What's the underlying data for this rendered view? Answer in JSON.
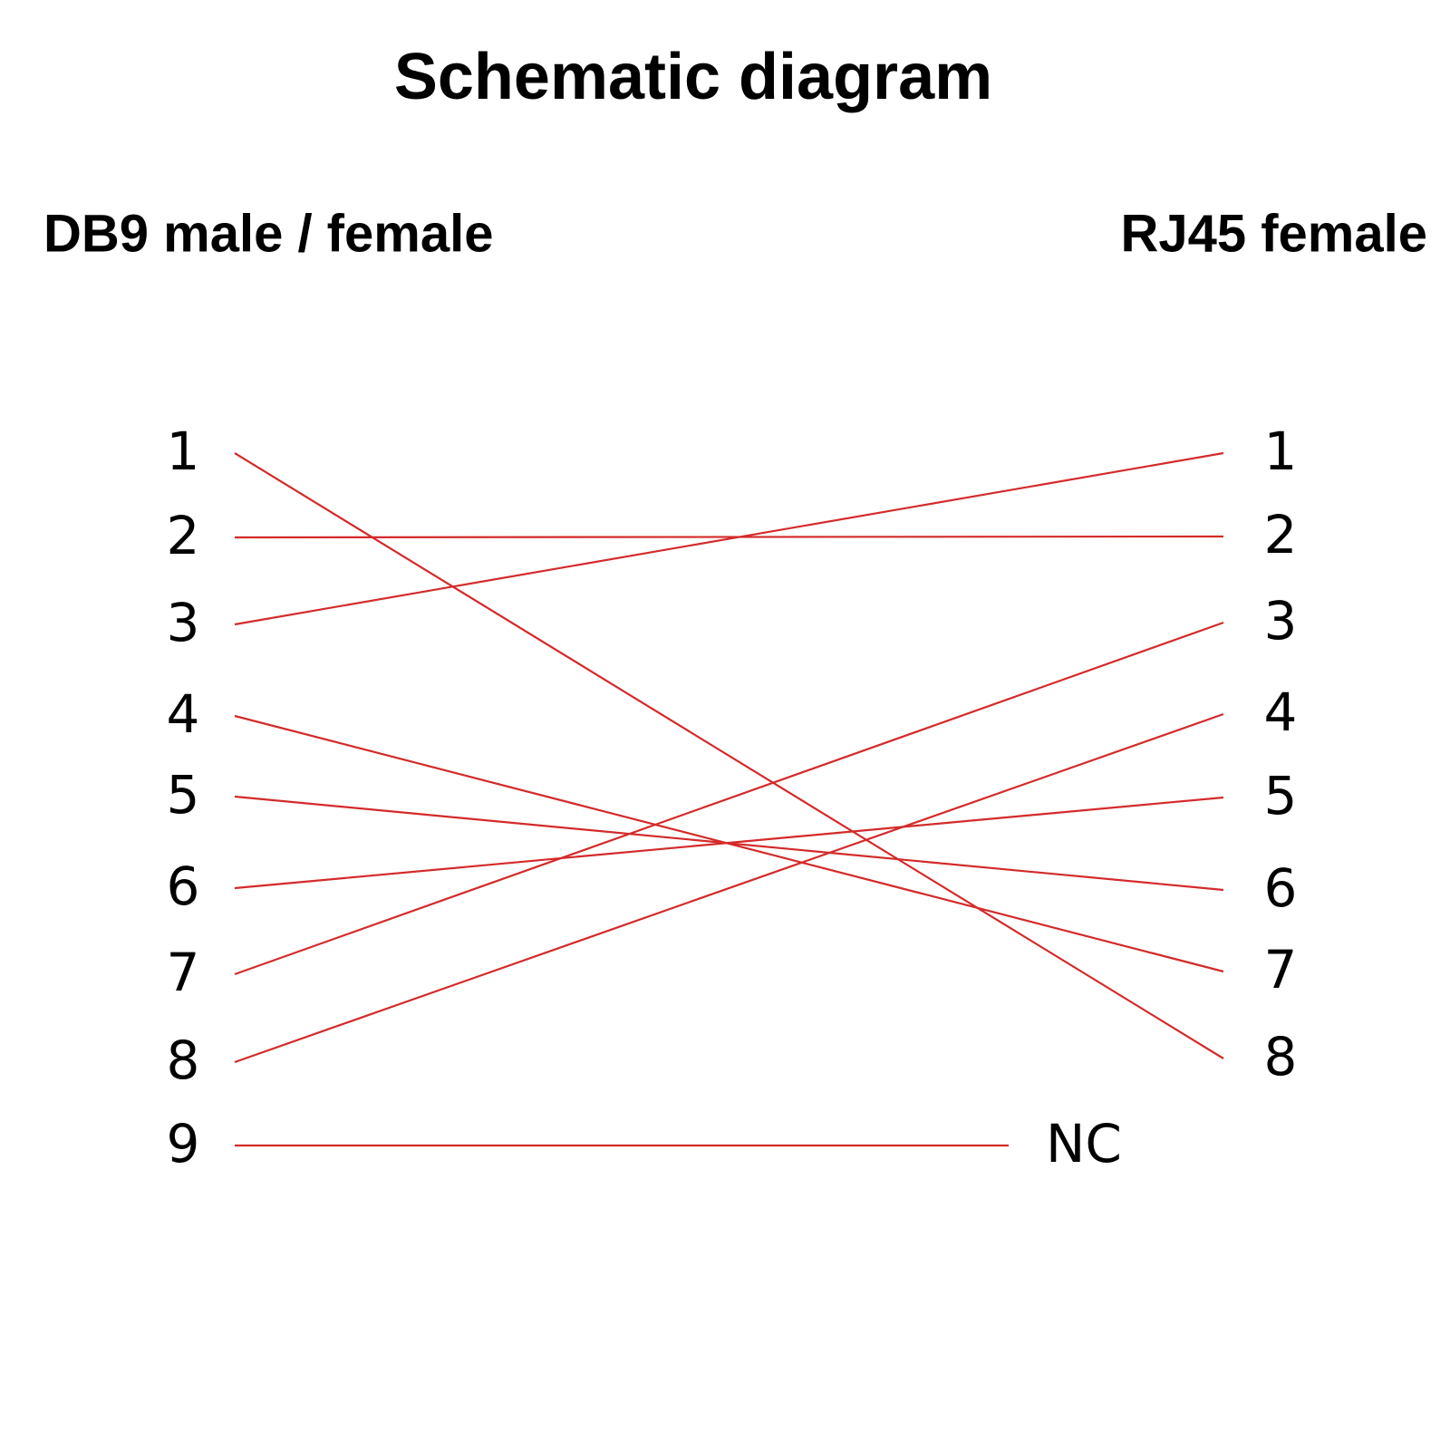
{
  "title": "Schematic diagram",
  "left": {
    "header": "DB9 male / female",
    "pins": [
      "1",
      "2",
      "3",
      "4",
      "5",
      "6",
      "7",
      "8",
      "9"
    ]
  },
  "right": {
    "header": "RJ45 female",
    "pins": [
      "1",
      "2",
      "3",
      "4",
      "5",
      "6",
      "7",
      "8"
    ],
    "nc": "NC"
  },
  "wires": [
    {
      "from": "1",
      "to": "8"
    },
    {
      "from": "2",
      "to": "2"
    },
    {
      "from": "3",
      "to": "1"
    },
    {
      "from": "4",
      "to": "7"
    },
    {
      "from": "5",
      "to": "6"
    },
    {
      "from": "6",
      "to": "5"
    },
    {
      "from": "7",
      "to": "3"
    },
    {
      "from": "8",
      "to": "4"
    },
    {
      "from": "9",
      "to": "NC"
    }
  ]
}
